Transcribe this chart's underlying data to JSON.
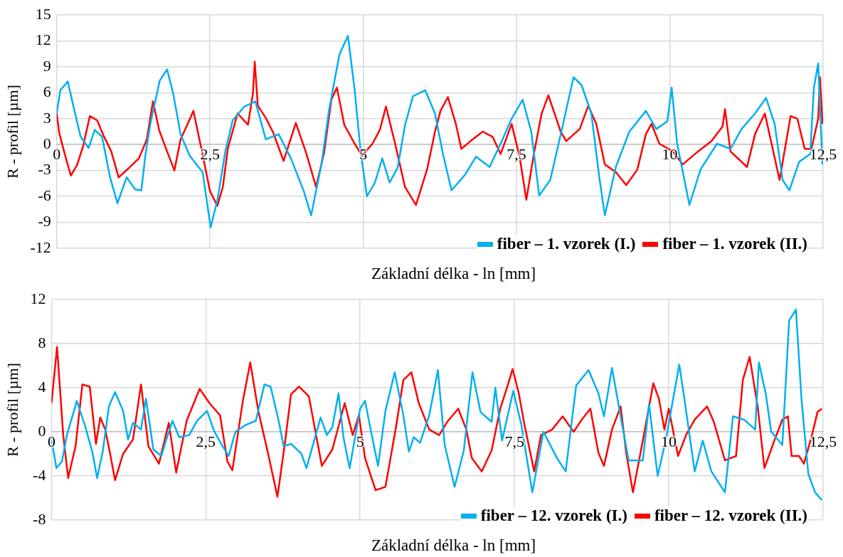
{
  "chart_data": [
    {
      "type": "line",
      "ylabel": "R - profil [µm]",
      "xlabel": "Základní délka - ln [mm]",
      "xlim": [
        0,
        12.5
      ],
      "xticks": [
        0,
        {
          "value": 2.5,
          "label": "2,5"
        },
        5,
        {
          "value": 7.5,
          "label": "7,5"
        },
        10,
        {
          "value": 12.5,
          "label": "12,5"
        }
      ],
      "ylim": [
        -12,
        15
      ],
      "yticks": [
        -12,
        -9,
        -6,
        -3,
        0,
        3,
        6,
        9,
        12,
        15
      ],
      "grid": true,
      "legend": "bottom right",
      "series": [
        {
          "name": "fiber – 1. vzorek (I.)",
          "color": "#00b0f0",
          "x": [
            0,
            0.06,
            0.18,
            0.29,
            0.39,
            0.52,
            0.62,
            0.74,
            0.87,
            0.99,
            1.14,
            1.28,
            1.38,
            1.45,
            1.53,
            1.68,
            1.8,
            1.9,
            2.02,
            2.17,
            2.38,
            2.51,
            2.62,
            2.75,
            2.87,
            3.06,
            3.24,
            3.41,
            3.62,
            3.82,
            4.03,
            4.15,
            4.32,
            4.44,
            4.61,
            4.75,
            4.86,
            4.96,
            5.06,
            5.19,
            5.31,
            5.43,
            5.56,
            5.68,
            5.81,
            6.01,
            6.17,
            6.3,
            6.44,
            6.66,
            6.84,
            7.06,
            7.24,
            7.42,
            7.6,
            7.74,
            7.87,
            8.05,
            8.25,
            8.43,
            8.56,
            8.72,
            8.85,
            8.94,
            9.12,
            9.34,
            9.61,
            9.78,
            9.96,
            10.03,
            10.12,
            10.32,
            10.5,
            10.77,
            10.99,
            11.17,
            11.39,
            11.57,
            11.71,
            11.84,
            11.95,
            12.11,
            12.29,
            12.35,
            12.42,
            12.49
          ],
          "values": [
            3.6,
            6.3,
            7.3,
            3.9,
            0.9,
            -0.4,
            1.7,
            0.9,
            -3.8,
            -6.8,
            -3.8,
            -5.2,
            -5.3,
            -1,
            2.5,
            7.4,
            8.7,
            5.9,
            1.2,
            -1.3,
            -3.2,
            -9.6,
            -6.5,
            -0.8,
            2.8,
            4.4,
            5,
            0.6,
            1.2,
            -1.6,
            -5.4,
            -8.2,
            -2.2,
            3.9,
            10.4,
            12.6,
            6.3,
            -1,
            -6,
            -4.4,
            -1.6,
            -4.4,
            -2.7,
            2.2,
            5.6,
            6.3,
            3.6,
            -1.1,
            -5.3,
            -3.5,
            -1.4,
            -2.6,
            0.1,
            3,
            5.2,
            1.5,
            -5.9,
            -4.1,
            2.1,
            7.8,
            6.9,
            3.6,
            -3.8,
            -8.2,
            -2.6,
            1.5,
            3.9,
            1.8,
            2.7,
            6.6,
            0.1,
            -7,
            -2.9,
            0.1,
            -0.5,
            1.8,
            3.6,
            5.4,
            2.4,
            -4.1,
            -5.3,
            -2,
            -1.1,
            6.6,
            9.4,
            -2.3
          ]
        },
        {
          "name": "fiber – 1. vzorek (II.)",
          "color": "#ff0000",
          "x": [
            0,
            0.04,
            0.12,
            0.23,
            0.33,
            0.43,
            0.54,
            0.66,
            0.76,
            0.89,
            1.01,
            1.18,
            1.34,
            1.47,
            1.57,
            1.67,
            1.8,
            1.92,
            2.02,
            2.13,
            2.23,
            2.36,
            2.5,
            2.62,
            2.71,
            2.79,
            2.95,
            3.12,
            3.2,
            3.23,
            3.28,
            3.41,
            3.53,
            3.7,
            3.9,
            4.07,
            4.23,
            4.36,
            4.48,
            4.57,
            4.69,
            4.86,
            4.98,
            5.15,
            5.27,
            5.37,
            5.52,
            5.68,
            5.86,
            6.04,
            6.17,
            6.26,
            6.38,
            6.51,
            6.6,
            6.75,
            6.95,
            7.11,
            7.24,
            7.42,
            7.55,
            7.66,
            7.79,
            7.91,
            8.02,
            8.22,
            8.31,
            8.53,
            8.67,
            8.8,
            8.94,
            9.12,
            9.29,
            9.47,
            9.61,
            9.7,
            9.83,
            10.05,
            10.21,
            10.46,
            10.68,
            10.86,
            10.9,
            10.99,
            11.26,
            11.39,
            11.55,
            11.66,
            11.79,
            11.97,
            12.08,
            12.2,
            12.31,
            12.42,
            12.45,
            12.49
          ],
          "values": [
            3.6,
            1.4,
            -0.8,
            -3.6,
            -2.4,
            -0.2,
            3.3,
            2.8,
            1.1,
            -0.8,
            -3.8,
            -2.7,
            -1.6,
            0.6,
            5,
            1.7,
            -0.8,
            -3,
            0.6,
            2.3,
            3.9,
            -0.5,
            -5.4,
            -7.1,
            -4.9,
            -0.5,
            3.6,
            2.3,
            5.9,
            9.6,
            4.5,
            3.1,
            1.4,
            -1.9,
            2.5,
            -1,
            -4.9,
            -1,
            5.2,
            6.6,
            2.3,
            0.1,
            -1.3,
            0.1,
            1.7,
            4.4,
            0.1,
            -4.9,
            -7,
            -2.9,
            1.5,
            3.9,
            5.5,
            2.4,
            -0.5,
            0.4,
            1.5,
            0.9,
            -1.1,
            2.4,
            -1.4,
            -6.4,
            -0.8,
            3.6,
            5.7,
            1.5,
            0.4,
            1.8,
            4.5,
            2.4,
            -2.3,
            -3.2,
            -4.7,
            -2.9,
            1.2,
            2.4,
            0.1,
            -0.8,
            -2.3,
            -0.8,
            0.4,
            2.1,
            4.1,
            -0.8,
            -2.6,
            1.2,
            3.6,
            0.1,
            -4.1,
            3.3,
            3,
            -0.5,
            -0.5,
            3,
            7.8,
            2.4
          ]
        }
      ]
    },
    {
      "type": "line",
      "ylabel": "R - profil [µm]",
      "xlabel": "Základní délka - ln [mm]",
      "xlim": [
        0,
        12.5
      ],
      "xticks": [
        0,
        {
          "value": 2.5,
          "label": "2,5"
        },
        5,
        {
          "value": 7.5,
          "label": "7,5"
        },
        10,
        {
          "value": 12.5,
          "label": "12,5"
        }
      ],
      "ylim": [
        -8,
        12
      ],
      "yticks": [
        -8,
        -4,
        0,
        4,
        8,
        12
      ],
      "grid": true,
      "legend": "bottom right",
      "series": [
        {
          "name": "fiber – 12. vzorek (I.)",
          "color": "#00b0f0",
          "x": [
            0,
            0.08,
            0.17,
            0.25,
            0.41,
            0.54,
            0.66,
            0.74,
            0.83,
            0.93,
            1.03,
            1.16,
            1.24,
            1.32,
            1.45,
            1.53,
            1.65,
            1.78,
            1.86,
            1.96,
            2.07,
            2.23,
            2.36,
            2.52,
            2.64,
            2.77,
            2.87,
            2.98,
            3.14,
            3.31,
            3.45,
            3.55,
            3.68,
            3.76,
            3.88,
            4.05,
            4.13,
            4.26,
            4.36,
            4.46,
            4.55,
            4.65,
            4.73,
            4.83,
            5,
            5.08,
            5.17,
            5.29,
            5.41,
            5.56,
            5.7,
            5.79,
            5.87,
            5.97,
            6.12,
            6.26,
            6.37,
            6.53,
            6.68,
            6.82,
            6.95,
            7.13,
            7.19,
            7.3,
            7.48,
            7.61,
            7.79,
            7.97,
            8.19,
            8.33,
            8.5,
            8.7,
            8.86,
            8.95,
            9.08,
            9.22,
            9.35,
            9.58,
            9.68,
            9.82,
            9.95,
            10.17,
            10.24,
            10.42,
            10.55,
            10.69,
            10.91,
            11.04,
            11.22,
            11.4,
            11.46,
            11.57,
            11.66,
            11.84,
            11.95,
            12.06,
            12.15,
            12.26,
            12.37,
            12.48
          ],
          "values": [
            -0.7,
            -3.3,
            -2.7,
            -0.3,
            2.8,
            0.6,
            -1.8,
            -4.2,
            -1.8,
            2.3,
            3.6,
            1.9,
            -0.7,
            0.8,
            0.2,
            3,
            -1.6,
            -2.2,
            -0.7,
            1,
            -0.5,
            -0.3,
            1,
            1.9,
            0,
            -1.3,
            -2.2,
            0,
            0.6,
            1,
            4.3,
            4.1,
            1,
            -1.3,
            -1.1,
            -2,
            -3.3,
            -0.7,
            1.3,
            -0.3,
            0.4,
            3.5,
            -0.5,
            -3.3,
            2.1,
            2.8,
            0.2,
            -3.1,
            1.9,
            5.4,
            1.5,
            -1.8,
            -0.5,
            -1,
            1.5,
            5.6,
            -1.2,
            -5,
            -1.7,
            5.4,
            1.8,
            0.9,
            4,
            -0.8,
            3.7,
            0.7,
            -5.5,
            0,
            -2.4,
            -3.6,
            4.2,
            5.6,
            3.5,
            1.4,
            5.8,
            1.4,
            -2.6,
            -2.6,
            2.5,
            -4,
            -0.8,
            6.1,
            3.5,
            -3.6,
            -0.8,
            -3.6,
            -5.5,
            1.4,
            1.1,
            0.2,
            6.3,
            3.5,
            0,
            -1.2,
            10.1,
            11.1,
            3,
            -3.8,
            -5.5,
            -6.2
          ]
        },
        {
          "name": "fiber – 12. vzorek (II.)",
          "color": "#ff0000",
          "x": [
            0,
            0.09,
            0.19,
            0.27,
            0.39,
            0.5,
            0.62,
            0.72,
            0.79,
            0.87,
            0.95,
            1.03,
            1.16,
            1.32,
            1.45,
            1.57,
            1.74,
            1.9,
            2.02,
            2.19,
            2.4,
            2.56,
            2.73,
            2.85,
            2.93,
            3.1,
            3.22,
            3.35,
            3.51,
            3.66,
            3.78,
            3.88,
            4.01,
            4.17,
            4.3,
            4.38,
            4.55,
            4.75,
            4.88,
            4.98,
            5.08,
            5.25,
            5.41,
            5.58,
            5.7,
            5.83,
            5.95,
            6.12,
            6.28,
            6.41,
            6.59,
            6.72,
            6.81,
            6.97,
            7.13,
            7.27,
            7.39,
            7.47,
            7.57,
            7.66,
            7.82,
            7.93,
            8.11,
            8.28,
            8.46,
            8.59,
            8.73,
            8.86,
            8.95,
            9.08,
            9.22,
            9.31,
            9.42,
            9.58,
            9.75,
            9.84,
            9.93,
            10,
            10.15,
            10.28,
            10.42,
            10.62,
            10.73,
            10.91,
            11.09,
            11.2,
            11.31,
            11.44,
            11.55,
            11.71,
            11.84,
            11.93,
            11.99,
            12.11,
            12.19,
            12.32,
            12.41,
            12.48
          ],
          "values": [
            2.6,
            7.7,
            -0.3,
            -4.2,
            -1.3,
            4.3,
            4.1,
            -1.1,
            1.3,
            0.2,
            -2,
            -4.4,
            -2,
            -0.7,
            4.3,
            -1.3,
            -2.9,
            0.8,
            -3.7,
            1,
            3.9,
            2.6,
            1.5,
            -2.7,
            -3.5,
            2.8,
            6.3,
            1.9,
            -2,
            -5.9,
            -1.1,
            3.4,
            4.1,
            3.2,
            -0.7,
            -3.1,
            -1.6,
            2.6,
            -0.3,
            1.5,
            -2.4,
            -5.3,
            -5,
            0.4,
            4.7,
            5.4,
            2.6,
            0.2,
            -0.3,
            0.9,
            2.1,
            0.2,
            -2.4,
            -3.6,
            -1.7,
            2.1,
            4.2,
            5.7,
            3.5,
            0.7,
            -3.6,
            -0.3,
            0.2,
            1.4,
            0,
            1.1,
            2.1,
            -1.9,
            -3.1,
            0.2,
            2.3,
            -1.9,
            -5.5,
            -0.8,
            4.4,
            3,
            0.2,
            2.1,
            -2.2,
            -0.3,
            1.1,
            2.3,
            0.9,
            -2.6,
            -2.2,
            4.7,
            6.8,
            2.3,
            -3.3,
            -0.8,
            1.1,
            1.4,
            -2.2,
            -2.2,
            -2.9,
            -0.3,
            1.8,
            2.1
          ]
        }
      ]
    }
  ]
}
